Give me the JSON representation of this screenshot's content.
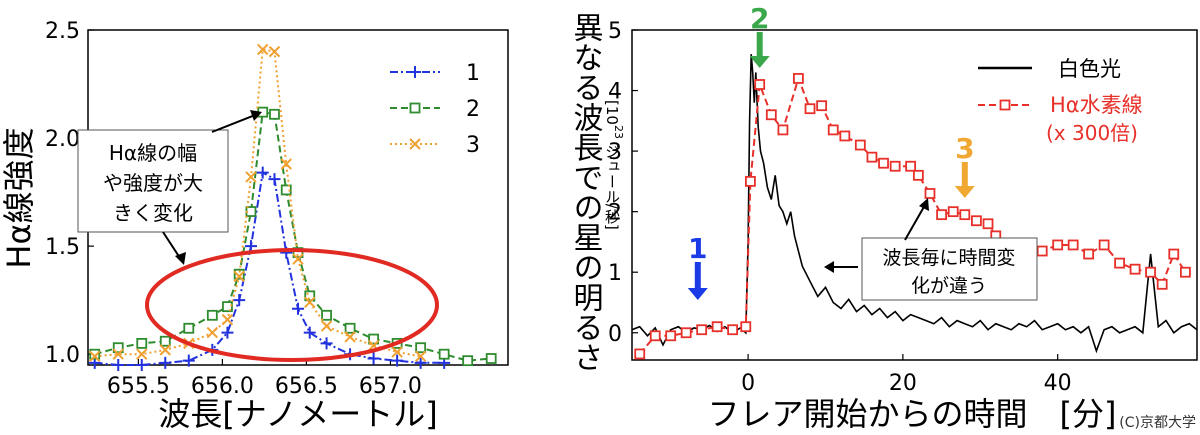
{
  "chart_data": [
    {
      "type": "line",
      "xlabel": "波長[ナノメートル]",
      "ylabel": "Hα線強度",
      "xlim": [
        655.2,
        657.7
      ],
      "ylim": [
        0.95,
        2.5
      ],
      "xticks": [
        "655.5",
        "656.0",
        "656.5",
        "657.0"
      ],
      "yticks": [
        "1.0",
        "1.5",
        "2.0",
        "2.5"
      ],
      "legend_position": "top-right",
      "series": [
        {
          "name": "1",
          "color": "#2233dd",
          "marker": "plus",
          "line": "dashdot",
          "x": [
            655.24,
            655.38,
            655.52,
            655.66,
            655.8,
            655.94,
            656.03,
            656.1,
            656.17,
            656.24,
            656.31,
            656.38,
            656.45,
            656.52,
            656.62,
            656.76,
            656.9,
            657.04,
            657.18,
            657.32
          ],
          "y": [
            0.96,
            0.95,
            0.95,
            0.96,
            0.97,
            1.02,
            1.1,
            1.25,
            1.5,
            1.84,
            1.81,
            1.47,
            1.21,
            1.1,
            1.05,
            1.0,
            0.98,
            0.97,
            0.96,
            0.96
          ]
        },
        {
          "name": "2",
          "color": "#2e8b2e",
          "marker": "square",
          "line": "dashed",
          "x": [
            655.24,
            655.38,
            655.52,
            655.66,
            655.8,
            655.94,
            656.03,
            656.1,
            656.17,
            656.24,
            656.31,
            656.38,
            656.45,
            656.52,
            656.62,
            656.76,
            656.9,
            657.04,
            657.18,
            657.32,
            657.46,
            657.6
          ],
          "y": [
            1.0,
            1.03,
            1.05,
            1.06,
            1.12,
            1.18,
            1.22,
            1.37,
            1.66,
            2.12,
            2.11,
            1.76,
            1.47,
            1.27,
            1.18,
            1.12,
            1.07,
            1.05,
            1.03,
            1.0,
            0.97,
            0.98
          ]
        },
        {
          "name": "3",
          "color": "#f0a030",
          "marker": "x",
          "line": "dotted",
          "x": [
            655.24,
            655.38,
            655.52,
            655.66,
            655.8,
            655.94,
            656.03,
            656.1,
            656.17,
            656.24,
            656.31,
            656.38,
            656.45,
            656.52,
            656.62,
            656.76,
            656.9,
            657.04,
            657.18
          ],
          "y": [
            0.99,
            1.0,
            1.0,
            1.02,
            1.05,
            1.1,
            1.16,
            1.36,
            1.82,
            2.41,
            2.4,
            1.88,
            1.44,
            1.24,
            1.13,
            1.08,
            1.04,
            1.01,
            0.99
          ]
        }
      ],
      "annotations": [
        {
          "text": "Hα線の幅や強度が大きく変化",
          "lines": [
            "Hα線の幅",
            "や強度が大",
            "きく変化"
          ]
        }
      ]
    },
    {
      "type": "line",
      "xlabel": "フレア開始からの時間　[分]",
      "ylabel": "異なる波長での星の明るさ",
      "ylabel_unit": "[10²³ ジュール/秒]",
      "ylabel_unit_base": "[10",
      "ylabel_unit_exp": "23",
      "ylabel_unit_rest": " ジュール/秒]",
      "xlim": [
        -15,
        58
      ],
      "ylim": [
        -0.45,
        5
      ],
      "xticks": [
        "0",
        "20",
        "40"
      ],
      "yticks": [
        "0",
        "1",
        "2",
        "3",
        "4",
        "5"
      ],
      "legend_position": "top-right",
      "series": [
        {
          "name": "白色光",
          "color": "#000000",
          "line": "solid",
          "x": [
            -15,
            -14,
            -13,
            -12,
            -11,
            -10,
            -9,
            -8,
            -7,
            -6,
            -5,
            -4,
            -3,
            -2,
            -1,
            -0.3,
            0,
            0.2,
            0.4,
            0.6,
            0.8,
            1.0,
            1.3,
            1.6,
            2.0,
            2.5,
            3.0,
            3.5,
            4.0,
            4.5,
            5.0,
            5.5,
            6,
            7,
            8,
            9,
            10,
            11,
            12,
            13,
            14,
            15,
            16,
            17,
            18,
            19,
            20,
            21,
            22,
            23,
            24,
            25,
            26,
            27,
            28,
            29,
            30,
            31,
            32,
            33,
            34,
            35,
            36,
            37,
            38,
            39,
            40,
            41,
            42,
            43,
            44,
            45,
            46,
            47,
            48,
            49,
            50,
            51,
            52,
            53,
            54,
            55,
            56,
            57,
            58
          ],
          "y": [
            0.05,
            0.1,
            -0.05,
            0.08,
            -0.2,
            0.05,
            0.1,
            0.0,
            0.08,
            0.05,
            0.12,
            0.02,
            0.1,
            0.0,
            0.08,
            0.0,
            1.5,
            3.5,
            4.6,
            4.3,
            3.8,
            4.3,
            3.4,
            3.0,
            2.8,
            2.4,
            2.2,
            2.6,
            2.1,
            2.0,
            1.8,
            2.0,
            1.6,
            1.1,
            0.85,
            0.6,
            0.75,
            0.5,
            0.4,
            0.55,
            0.35,
            0.45,
            0.3,
            0.4,
            0.25,
            0.35,
            0.2,
            0.3,
            0.25,
            0.2,
            0.15,
            0.25,
            0.1,
            0.2,
            0.15,
            0.1,
            0.2,
            0.05,
            0.15,
            0.1,
            0.05,
            0.15,
            0.1,
            0.2,
            0.05,
            0.1,
            0.15,
            0.05,
            0.1,
            0.0,
            0.1,
            -0.3,
            0.05,
            0.1,
            0.0,
            0.05,
            0.1,
            0.0,
            1.3,
            0.1,
            0.2,
            0.0,
            0.1,
            0.15,
            0.05
          ]
        },
        {
          "name": "Hα水素線\n(x 300倍)",
          "name_line1": "Hα水素線",
          "name_line2": "(x 300倍)",
          "color": "#e8302a",
          "marker": "square",
          "line": "dashed",
          "x": [
            -14,
            -12,
            -10,
            -8,
            -6,
            -4,
            -2,
            -0.3,
            0.3,
            1.5,
            3.0,
            4.5,
            6.5,
            8.0,
            9.5,
            11.0,
            12.5,
            14.5,
            16.0,
            17.5,
            19.0,
            21.0,
            22.0,
            23.5,
            25.0,
            26.5,
            28.0,
            29.5,
            31.0,
            32.0,
            34.0,
            36.0,
            38.0,
            40.0,
            42.0,
            44.0,
            46.0,
            48.0,
            50.0,
            52.0,
            53.5,
            55.0,
            56.5
          ],
          "y": [
            -0.35,
            -0.05,
            -0.05,
            0.0,
            0.05,
            0.1,
            0.05,
            0.1,
            2.5,
            4.1,
            3.6,
            3.35,
            4.2,
            3.7,
            3.75,
            3.35,
            3.25,
            3.1,
            2.9,
            2.8,
            2.75,
            2.75,
            2.6,
            2.3,
            1.95,
            2.0,
            1.95,
            1.85,
            1.8,
            1.6,
            1.45,
            1.4,
            1.35,
            1.45,
            1.45,
            1.3,
            1.45,
            1.15,
            1.05,
            1.0,
            0.8,
            1.3,
            1.0
          ]
        }
      ],
      "markers": [
        {
          "label": "1",
          "x": -6.5,
          "color": "#1a3be6"
        },
        {
          "label": "2",
          "x": 1.5,
          "color": "#3aa84a"
        },
        {
          "label": "3",
          "x": 28.0,
          "color": "#f0a832"
        }
      ],
      "annotations": [
        {
          "text": "波長毎に時間変化が違う",
          "lines": [
            "波長毎に時間変",
            "化が違う"
          ]
        }
      ]
    }
  ],
  "credit": "(C)京都大学"
}
